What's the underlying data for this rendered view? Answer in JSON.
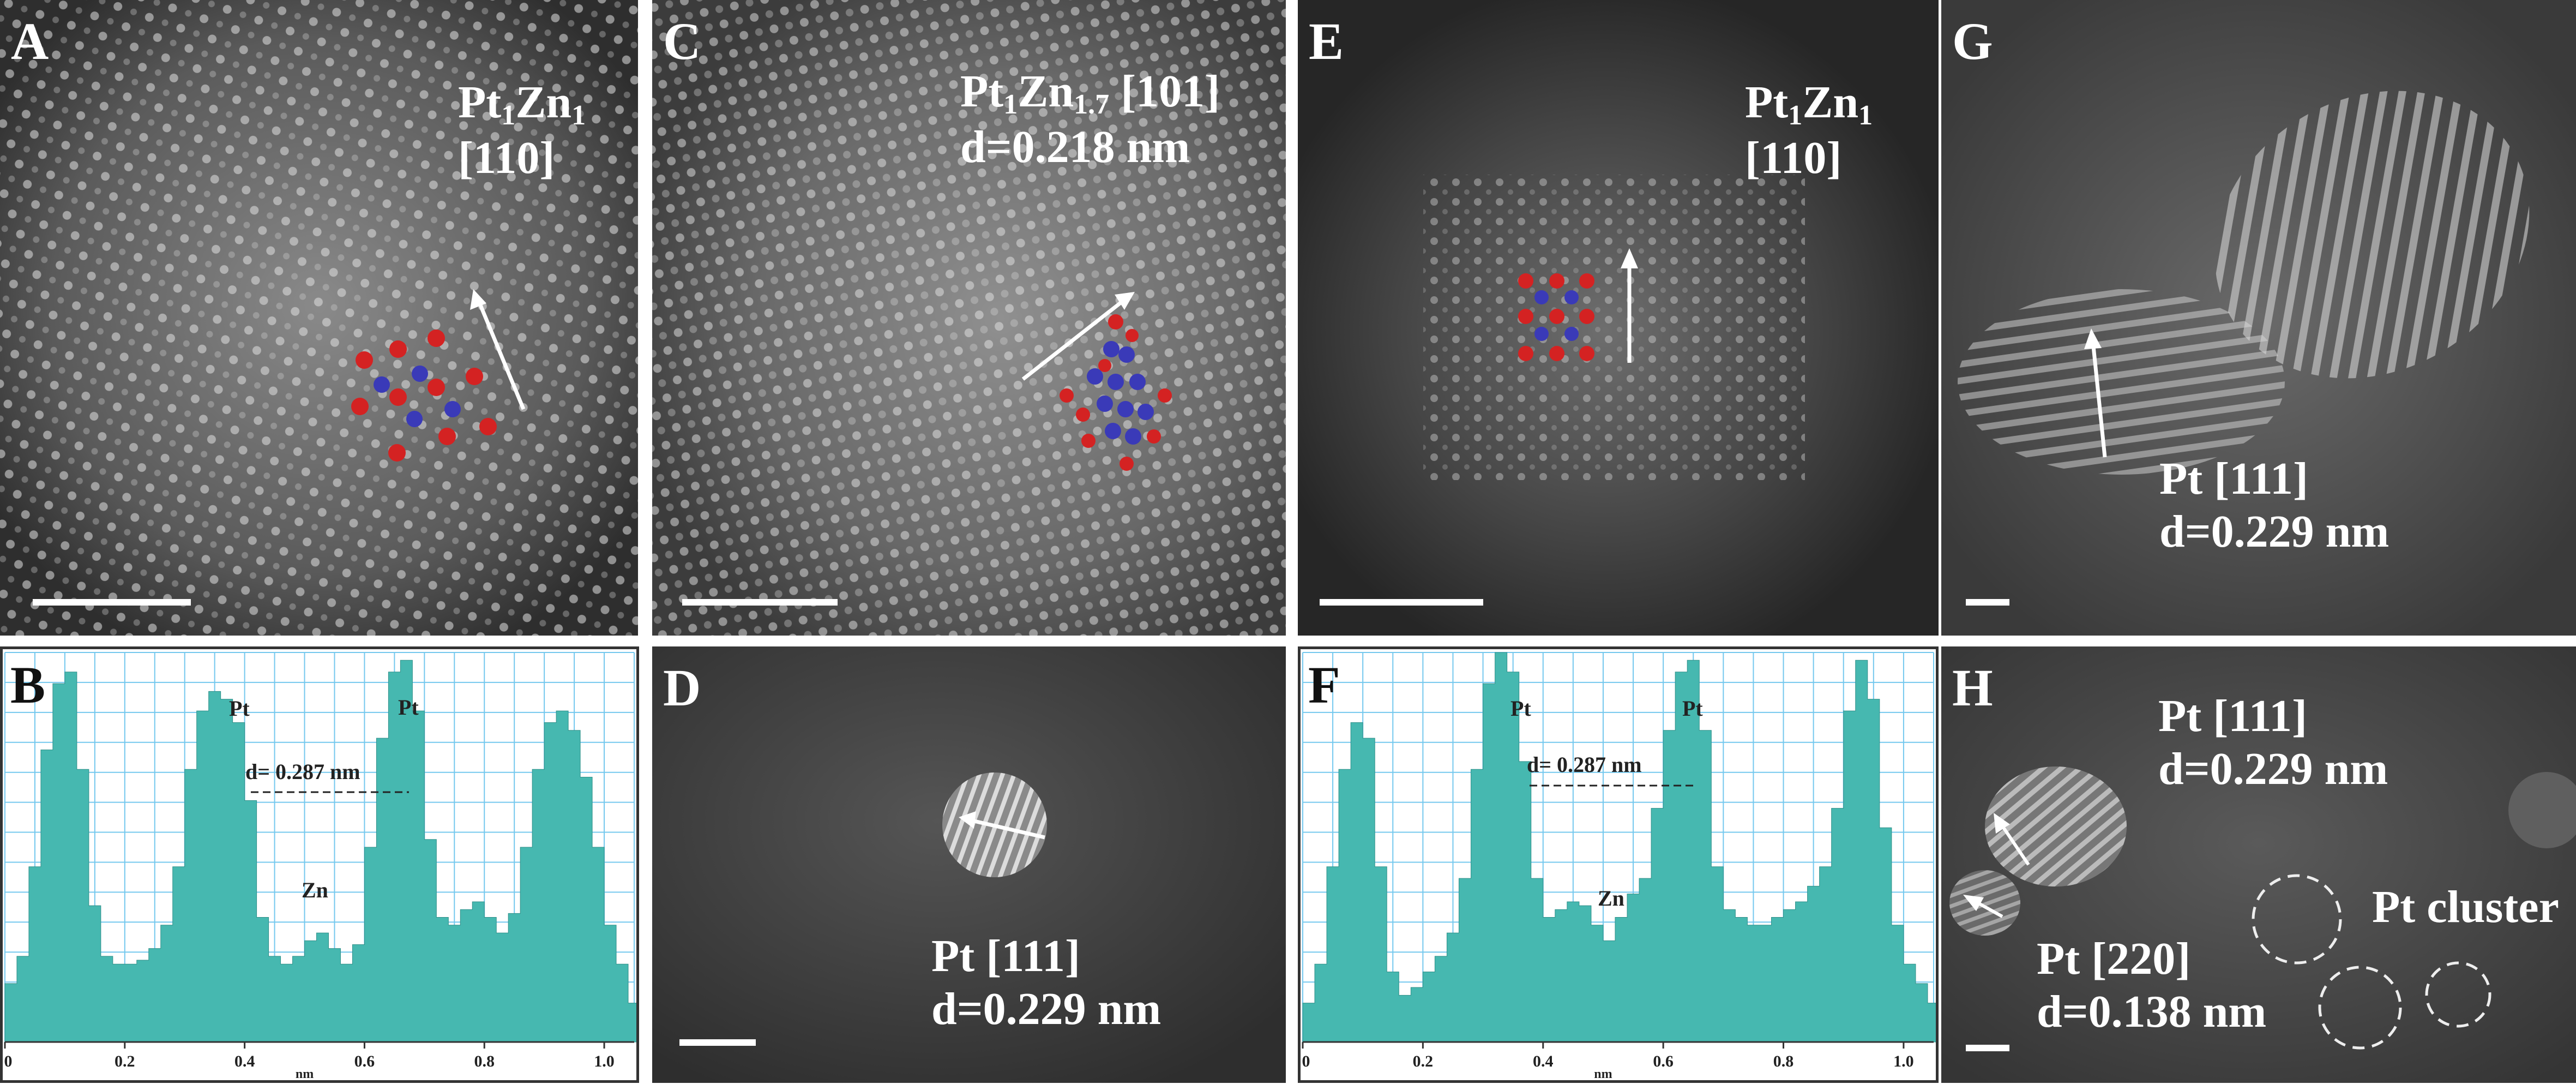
{
  "figure": {
    "colors": {
      "pt_atom": "#d42222",
      "zn_atom": "#3a3ab8",
      "profile_fill": "#46b8b0",
      "grid": "#74c8ee",
      "tem_bg": "#3a3a3a"
    }
  },
  "panels": {
    "A": {
      "label": "A",
      "phase_main": "Pt",
      "phase_sub1": "1",
      "phase_mid": "Zn",
      "phase_sub2": "1",
      "direction": "[110]"
    },
    "B": {
      "label": "B",
      "peak1": "Pt",
      "peak2": "Pt",
      "valley": "Zn",
      "d_spacing": "d= 0.287 nm",
      "x_ticks": [
        "0",
        "0.2",
        "0.4",
        "0.6",
        "0.8",
        "1.0"
      ],
      "x_unit": "nm"
    },
    "C": {
      "label": "C",
      "phase_main": "Pt",
      "phase_sub1": "1",
      "phase_mid": "Zn",
      "phase_sub2": "1.7",
      "direction": "[101]",
      "d_spacing": "d=0.218 nm"
    },
    "D": {
      "label": "D",
      "phase": "Pt [111]",
      "d_spacing": "d=0.229 nm"
    },
    "E": {
      "label": "E",
      "phase_main": "Pt",
      "phase_sub1": "1",
      "phase_mid": "Zn",
      "phase_sub2": "1",
      "direction": "[110]"
    },
    "F": {
      "label": "F",
      "peak1": "Pt",
      "peak2": "Pt",
      "valley": "Zn",
      "d_spacing": "d= 0.287 nm",
      "x_ticks": [
        "0",
        "0.2",
        "0.4",
        "0.6",
        "0.8",
        "1.0"
      ],
      "x_unit": "nm"
    },
    "G": {
      "label": "G",
      "phase": "Pt [111]",
      "d_spacing": "d=0.229 nm"
    },
    "H": {
      "label": "H",
      "phase1": "Pt [111]",
      "d1": "d=0.229 nm",
      "cluster": "Pt cluster",
      "phase2": "Pt [220]",
      "d2": "d=0.138 nm"
    }
  },
  "chart_data": [
    {
      "panel": "B",
      "type": "area",
      "x": [
        0.0,
        0.02,
        0.04,
        0.06,
        0.08,
        0.1,
        0.12,
        0.14,
        0.16,
        0.18,
        0.2,
        0.22,
        0.24,
        0.26,
        0.28,
        0.3,
        0.32,
        0.34,
        0.36,
        0.38,
        0.4,
        0.42,
        0.44,
        0.46,
        0.48,
        0.5,
        0.52,
        0.54,
        0.56,
        0.58,
        0.6,
        0.62,
        0.64,
        0.66,
        0.68,
        0.7,
        0.72,
        0.74,
        0.76,
        0.78,
        0.8,
        0.82,
        0.84,
        0.86,
        0.88,
        0.9,
        0.92,
        0.94,
        0.96,
        0.98,
        1.0,
        1.02,
        1.04
      ],
      "y": [
        0.15,
        0.22,
        0.45,
        0.75,
        0.92,
        0.95,
        0.7,
        0.35,
        0.22,
        0.2,
        0.2,
        0.21,
        0.24,
        0.3,
        0.45,
        0.7,
        0.85,
        0.9,
        0.88,
        0.82,
        0.62,
        0.32,
        0.22,
        0.2,
        0.22,
        0.26,
        0.28,
        0.24,
        0.2,
        0.25,
        0.5,
        0.78,
        0.95,
        0.98,
        0.85,
        0.52,
        0.32,
        0.3,
        0.34,
        0.36,
        0.32,
        0.28,
        0.33,
        0.5,
        0.7,
        0.82,
        0.85,
        0.8,
        0.68,
        0.5,
        0.3,
        0.2,
        0.1
      ],
      "xlim": [
        0,
        1.05
      ],
      "ylim": [
        0,
        1.0
      ],
      "grid": true
    },
    {
      "panel": "F",
      "type": "area",
      "x": [
        0.0,
        0.02,
        0.04,
        0.06,
        0.08,
        0.1,
        0.12,
        0.14,
        0.16,
        0.18,
        0.2,
        0.22,
        0.24,
        0.26,
        0.28,
        0.3,
        0.32,
        0.34,
        0.36,
        0.38,
        0.4,
        0.42,
        0.44,
        0.46,
        0.48,
        0.5,
        0.52,
        0.54,
        0.56,
        0.58,
        0.6,
        0.62,
        0.64,
        0.66,
        0.68,
        0.7,
        0.72,
        0.74,
        0.76,
        0.78,
        0.8,
        0.82,
        0.84,
        0.86,
        0.88,
        0.9,
        0.92,
        0.94,
        0.96,
        0.98,
        1.0,
        1.02,
        1.04
      ],
      "y": [
        0.1,
        0.2,
        0.45,
        0.7,
        0.82,
        0.78,
        0.45,
        0.18,
        0.12,
        0.14,
        0.18,
        0.22,
        0.28,
        0.42,
        0.7,
        0.92,
        1.0,
        0.95,
        0.72,
        0.42,
        0.32,
        0.34,
        0.36,
        0.35,
        0.3,
        0.26,
        0.32,
        0.38,
        0.42,
        0.6,
        0.8,
        0.95,
        0.98,
        0.8,
        0.45,
        0.34,
        0.32,
        0.3,
        0.3,
        0.32,
        0.34,
        0.36,
        0.4,
        0.45,
        0.6,
        0.85,
        0.98,
        0.88,
        0.55,
        0.3,
        0.2,
        0.15,
        0.1
      ],
      "xlim": [
        0,
        1.05
      ],
      "ylim": [
        0,
        1.0
      ],
      "grid": true
    }
  ]
}
